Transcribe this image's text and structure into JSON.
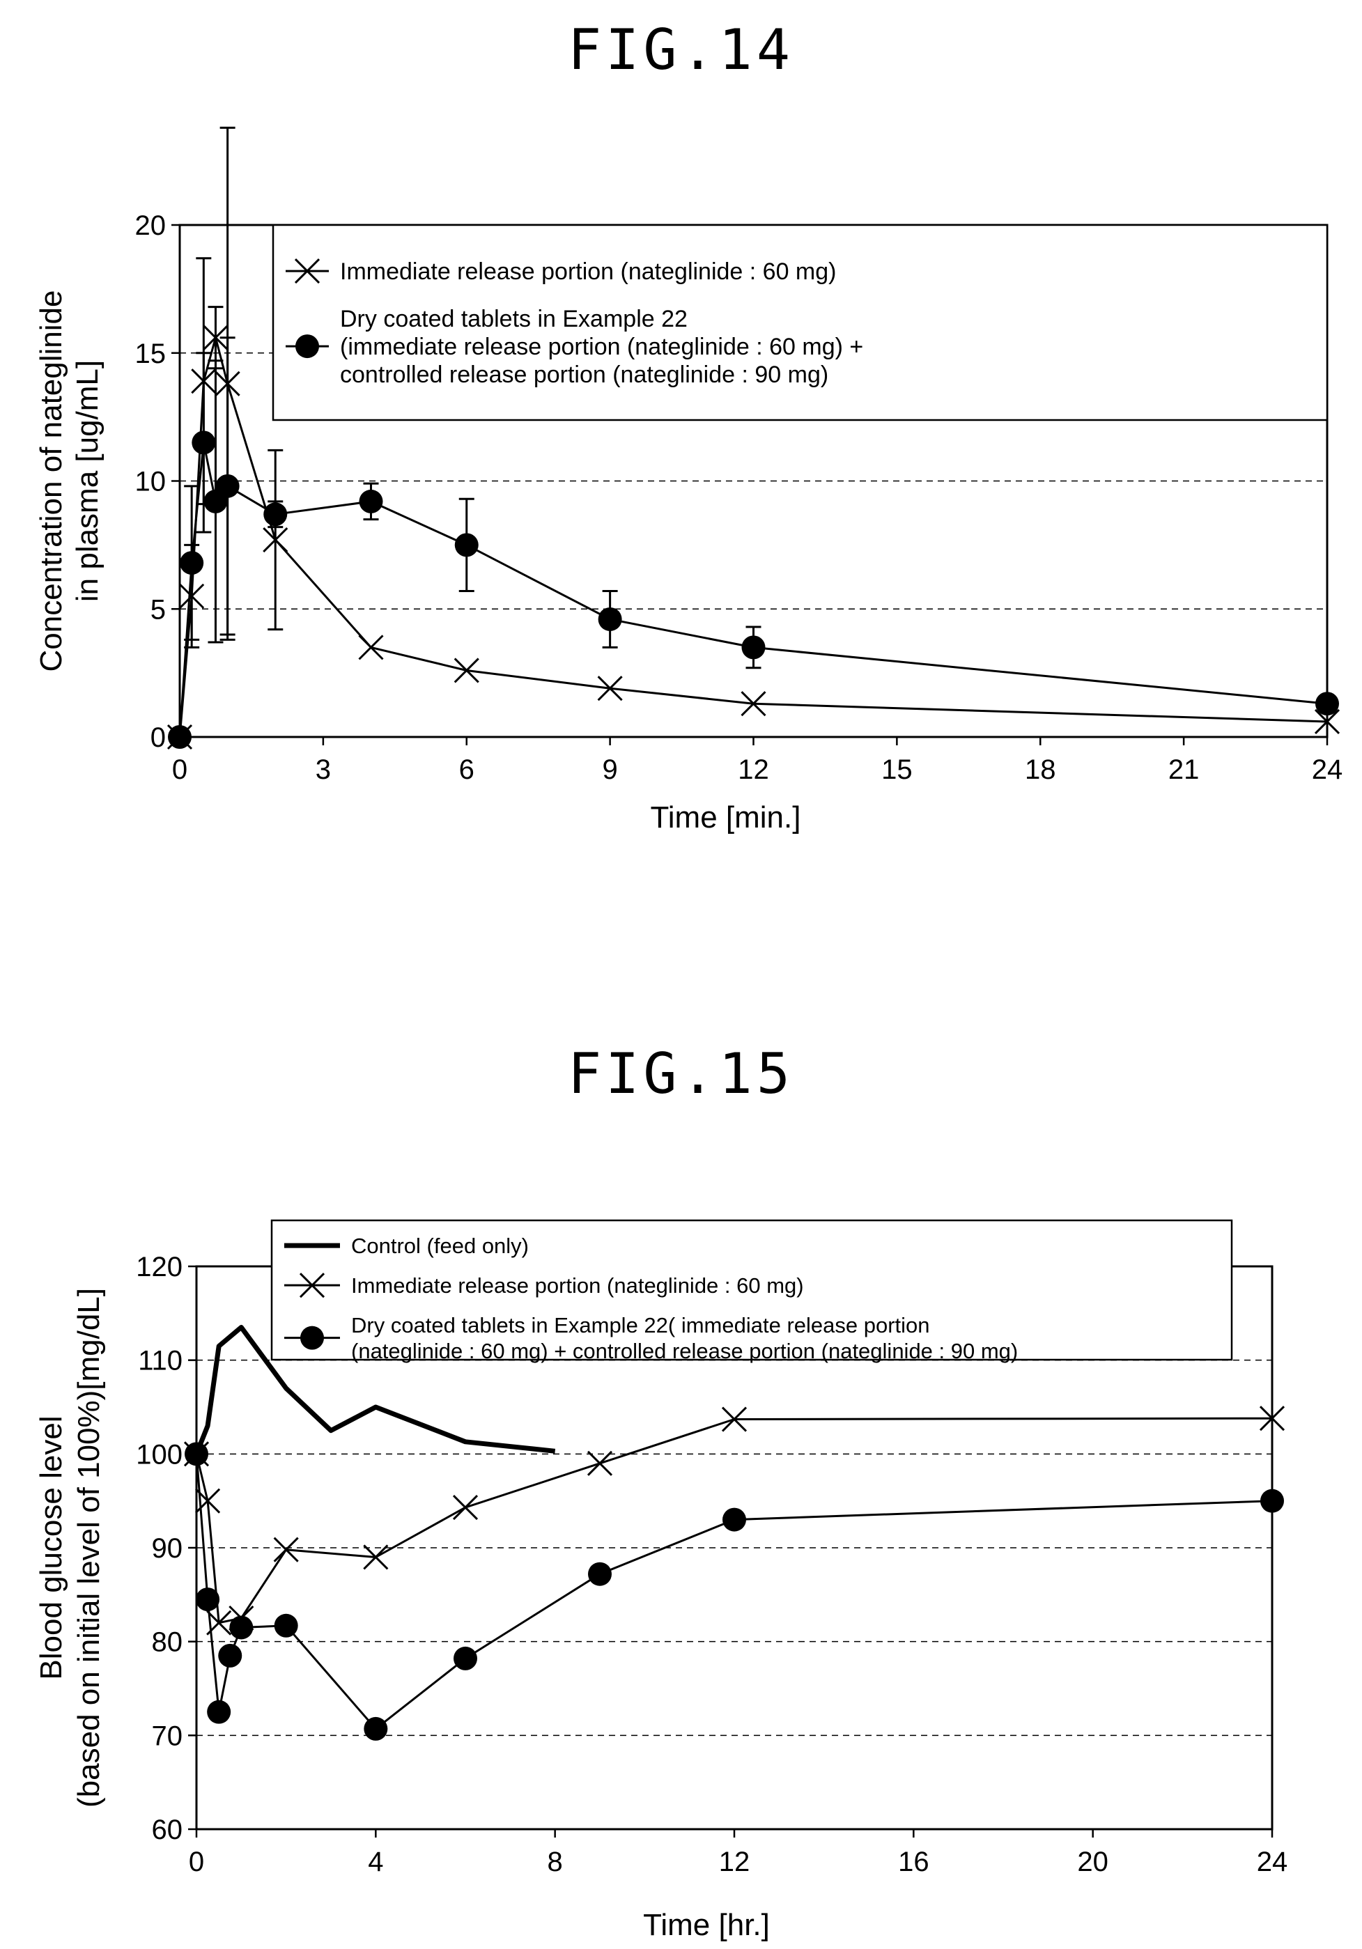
{
  "figures": {
    "fig14_title": "FIG.14",
    "fig15_title": "FIG.15"
  },
  "colors": {
    "ink": "#000000",
    "background": "#ffffff"
  },
  "chart_data": [
    {
      "type": "line",
      "title": "FIG.14",
      "xlabel": "Time [min.]",
      "ylabel_line1": "Concentration of nateglinide",
      "ylabel_line2": "in plasma [ug/mL]",
      "xlim": [
        0,
        24
      ],
      "ylim": [
        0,
        20
      ],
      "xticks": [
        0,
        3,
        6,
        9,
        12,
        15,
        18,
        21,
        24
      ],
      "yticks": [
        0,
        5,
        10,
        15,
        20
      ],
      "grid": "horizontal dashed",
      "legend_position": "top-right",
      "legend": [
        {
          "marker": "x",
          "lines": [
            "Immediate release portion (nateglinide : 60 mg)"
          ]
        },
        {
          "marker": "circle",
          "lines": [
            "Dry coated tablets in Example 22",
            "(immediate release portion (nateglinide : 60 mg) +",
            "controlled release portion (nateglinide : 90 mg)"
          ]
        }
      ],
      "series": [
        {
          "marker": "x",
          "x": [
            0,
            0.25,
            0.5,
            0.75,
            1,
            2,
            4,
            6,
            9,
            12,
            24
          ],
          "y": [
            0,
            5.5,
            13.9,
            15.6,
            13.8,
            7.7,
            3.5,
            2.6,
            1.9,
            1.3,
            0.6
          ],
          "err": [
            0,
            2,
            4.8,
            1.2,
            10,
            3.5,
            0,
            0,
            0,
            0,
            0
          ]
        },
        {
          "marker": "circle",
          "x": [
            0,
            0.25,
            0.5,
            0.75,
            1,
            2,
            4,
            6,
            9,
            12,
            24
          ],
          "y": [
            0,
            6.8,
            11.5,
            9.2,
            9.8,
            8.7,
            9.2,
            7.5,
            4.6,
            3.5,
            1.3
          ],
          "err": [
            0,
            3,
            3.5,
            5.5,
            5.8,
            0.5,
            0.7,
            1.8,
            1.1,
            0.8,
            0
          ]
        }
      ]
    },
    {
      "type": "line",
      "title": "FIG.15",
      "xlabel": "Time [hr.]",
      "ylabel_line1": "Blood glucose level",
      "ylabel_line2": "(based on initial level of 100%)[mg/dL]",
      "xlim": [
        0,
        24
      ],
      "ylim": [
        60,
        120
      ],
      "xticks": [
        0,
        4,
        8,
        12,
        16,
        20,
        24
      ],
      "yticks": [
        60,
        70,
        80,
        90,
        100,
        110,
        120
      ],
      "grid": "horizontal dashed",
      "legend_position": "top-right",
      "legend": [
        {
          "marker": "thick-line",
          "lines": [
            "Control (feed only)"
          ]
        },
        {
          "marker": "x",
          "lines": [
            "Immediate release portion (nateglinide : 60 mg)"
          ]
        },
        {
          "marker": "circle",
          "lines": [
            "Dry coated tablets in Example 22( immediate release portion",
            "(nateglinide : 60 mg) + controlled release portion (nateglinide : 90 mg)"
          ]
        }
      ],
      "series": [
        {
          "marker": "thick-line",
          "x": [
            0,
            0.25,
            0.5,
            1,
            2,
            3,
            4,
            6,
            8
          ],
          "y": [
            100,
            103,
            111.5,
            113.5,
            107,
            102.5,
            105,
            101.3,
            100.3
          ]
        },
        {
          "marker": "x",
          "x": [
            0,
            0.25,
            0.5,
            1,
            2,
            4,
            6,
            9,
            12,
            24
          ],
          "y": [
            100,
            95,
            82,
            82.5,
            89.8,
            89,
            94.3,
            99,
            103.7,
            103.8
          ]
        },
        {
          "marker": "circle",
          "x": [
            0,
            0.25,
            0.5,
            0.75,
            1,
            2,
            4,
            6,
            9,
            12,
            24
          ],
          "y": [
            100,
            84.5,
            72.5,
            78.5,
            81.5,
            81.7,
            70.7,
            78.2,
            87.2,
            93,
            95
          ]
        }
      ]
    }
  ]
}
